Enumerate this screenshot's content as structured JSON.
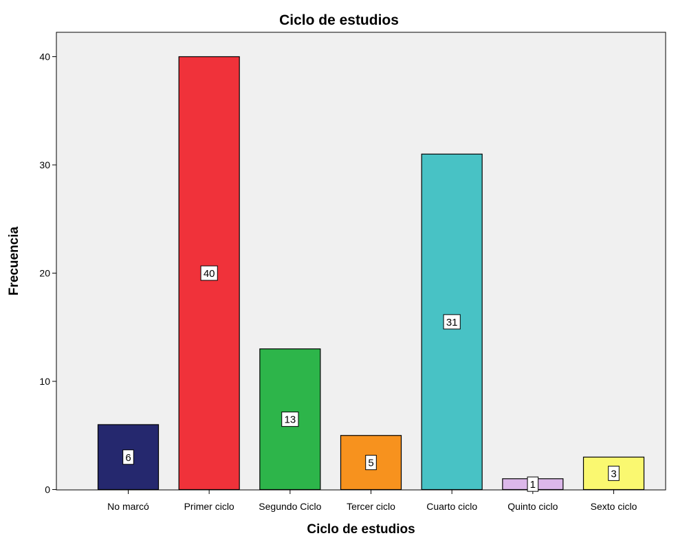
{
  "chart_data": {
    "type": "bar",
    "title": "Ciclo de estudios",
    "xlabel": "Ciclo de estudios",
    "ylabel": "Frecuencia",
    "categories": [
      "No marcó",
      "Primer ciclo",
      "Segundo Ciclo",
      "Tercer ciclo",
      "Cuarto ciclo",
      "Quinto ciclo",
      "Sexto ciclo"
    ],
    "values": [
      6,
      40,
      13,
      5,
      31,
      1,
      3
    ],
    "colors": [
      "#25286e",
      "#f0323a",
      "#2db54a",
      "#f7921e",
      "#48c2c5",
      "#dcb8ea",
      "#faf870"
    ],
    "ylim": [
      0,
      42
    ],
    "yticks": [
      0,
      10,
      20,
      30,
      40
    ],
    "plot_background": "#f0f0f0",
    "grid": false,
    "data_labels": true
  }
}
